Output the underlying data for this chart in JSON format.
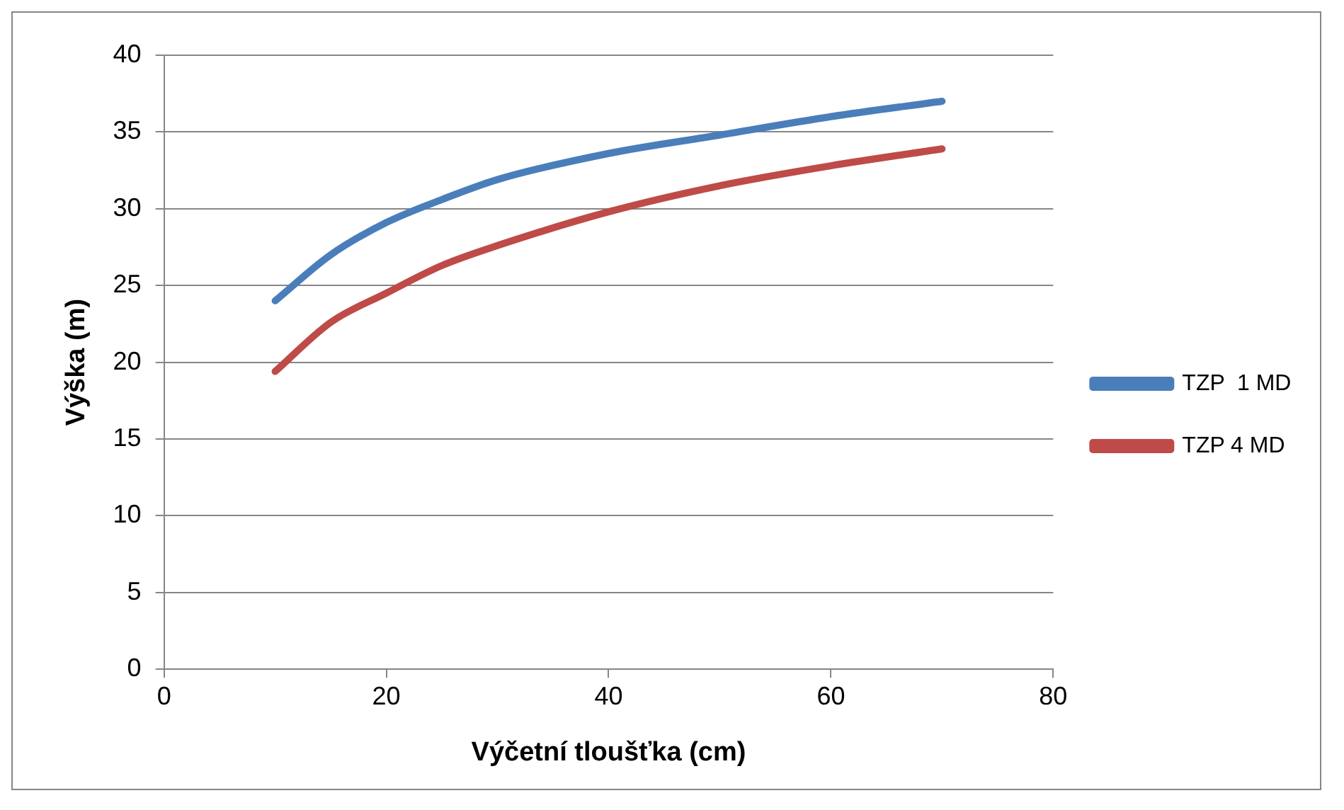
{
  "chart_data": {
    "type": "line",
    "xlabel": "Výčetní tloušťka (cm)",
    "ylabel": "Výška (m)",
    "xlim": [
      0,
      80
    ],
    "xticks": [
      0,
      20,
      40,
      60,
      80
    ],
    "ylim": [
      0,
      40
    ],
    "yticks": [
      0,
      5,
      10,
      15,
      20,
      25,
      30,
      35,
      40
    ],
    "grid": "y",
    "legend": "right",
    "marker": "none",
    "line_style": "solid",
    "x": [
      10,
      15,
      20,
      25,
      30,
      40,
      50,
      60,
      70
    ],
    "series": [
      {
        "name": "TZP  1 MD",
        "color": "#4a7ebb",
        "values": [
          24,
          27.0,
          29.1,
          30.6,
          31.9,
          33.6,
          34.8,
          36,
          37
        ]
      },
      {
        "name": "TZP 4 MD",
        "color": "#be4b48",
        "values": [
          19.4,
          22.6,
          24.5,
          26.3,
          27.6,
          29.8,
          31.5,
          32.8,
          33.9
        ]
      }
    ]
  }
}
